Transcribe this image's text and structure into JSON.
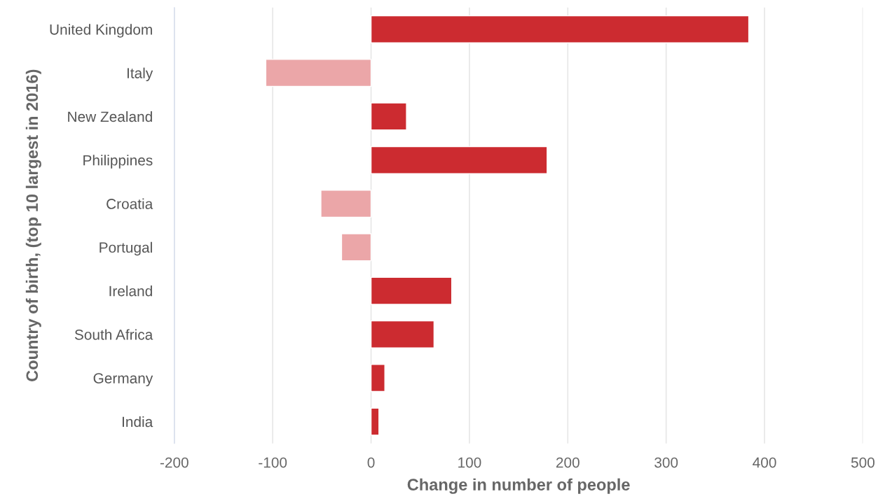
{
  "chart_data": {
    "type": "bar",
    "orientation": "horizontal",
    "xlabel": "Change in number of people",
    "ylabel": "Country of birth, (top 10 largest in 2016)",
    "categories": [
      "United Kingdom",
      "Italy",
      "New Zealand",
      "Philippines",
      "Croatia",
      "Portugal",
      "Ireland",
      "South Africa",
      "Germany",
      "India"
    ],
    "values": [
      384,
      -107,
      36,
      179,
      -51,
      -30,
      82,
      64,
      14,
      8
    ],
    "colors": [
      "#cc2b30",
      "#eba6a8",
      "#cc2b30",
      "#cc2b30",
      "#eba6a8",
      "#eba6a8",
      "#cc2b30",
      "#cc2b30",
      "#cc2b30",
      "#cc2b30"
    ],
    "xlim": [
      -200,
      500
    ],
    "xticks": [
      -200,
      -100,
      0,
      100,
      200,
      300,
      400,
      500
    ],
    "grid": "x"
  }
}
